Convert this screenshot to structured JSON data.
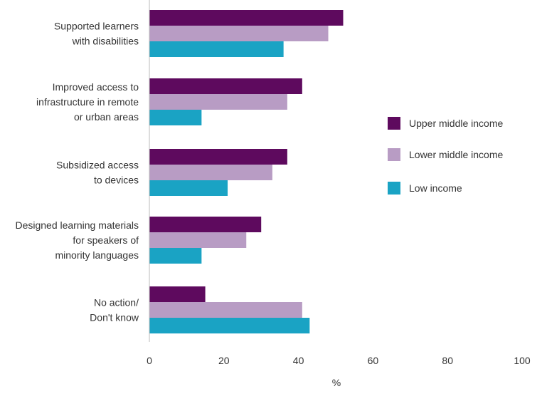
{
  "chart_data": {
    "type": "bar",
    "orientation": "horizontal",
    "title": "",
    "xlabel": "%",
    "ylabel": "",
    "xlim": [
      0,
      100
    ],
    "xticks": [
      0,
      20,
      40,
      60,
      80,
      100
    ],
    "grid": false,
    "legend_position": "right",
    "categories": [
      [
        "Supported learners",
        "with disabilities"
      ],
      [
        "Improved access to",
        "infrastructure in remote",
        "or urban areas"
      ],
      [
        "Subsidized access",
        "to devices"
      ],
      [
        "Designed learning materials",
        "for speakers of",
        "minority languages"
      ],
      [
        "No action/",
        "Don't know"
      ]
    ],
    "series": [
      {
        "name": "Upper middle income",
        "color": "#5e0a5e",
        "values": [
          52,
          41,
          37,
          30,
          15
        ]
      },
      {
        "name": "Lower middle income",
        "color": "#b89cc4",
        "values": [
          48,
          37,
          33,
          26,
          41
        ]
      },
      {
        "name": "Low income",
        "color": "#1aa3c4",
        "values": [
          36,
          14,
          21,
          14,
          43
        ]
      }
    ]
  }
}
